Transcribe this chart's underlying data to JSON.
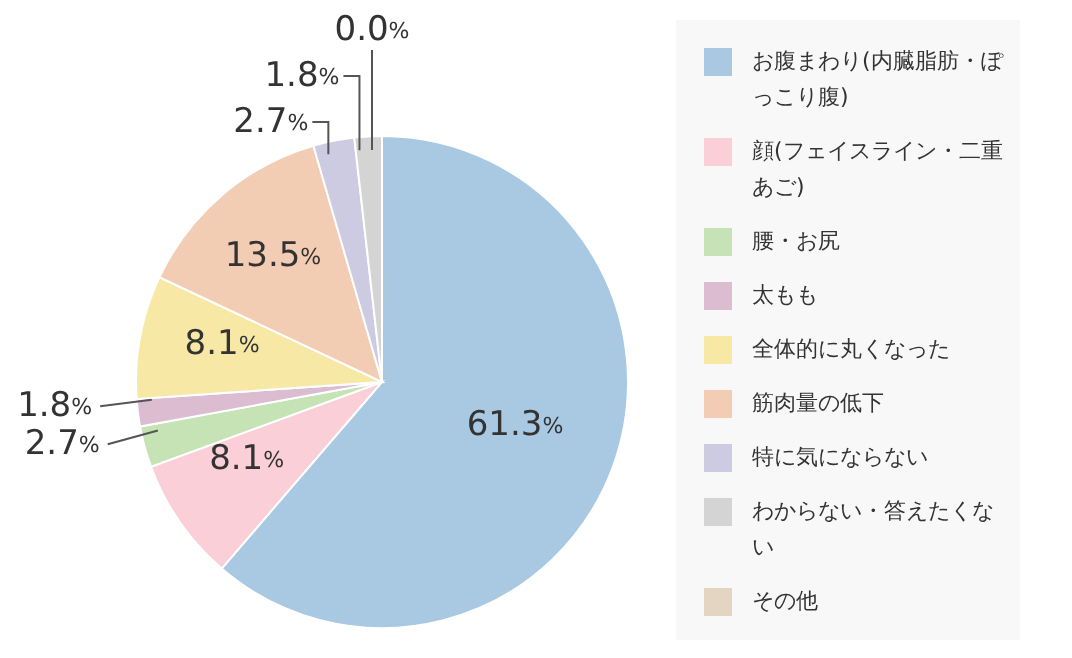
{
  "chart_data": {
    "type": "pie",
    "categories": [
      "お腹まわり(内臓脂肪・ぽっこり腹)",
      "顔(フェイスライン・二重あご)",
      "腰・お尻",
      "太もも",
      "全体的に丸くなった",
      "筋肉量の低下",
      "特に気にならない",
      "わからない・答えたくない",
      "その他"
    ],
    "values": [
      61.3,
      8.1,
      2.7,
      1.8,
      8.1,
      13.5,
      2.7,
      1.8,
      0.0
    ],
    "value_labels": [
      "61.3%",
      "8.1%",
      "2.7%",
      "1.8%",
      "8.1%",
      "13.5%",
      "2.7%",
      "1.8%",
      "0.0%"
    ],
    "colors": [
      "#a9c9e3",
      "#fbcfd7",
      "#c6e3b5",
      "#dcbcd1",
      "#f7e8a6",
      "#f3cdb3",
      "#cccbe2",
      "#d4d4d4",
      "#e4d5c3"
    ],
    "legend": "right"
  }
}
